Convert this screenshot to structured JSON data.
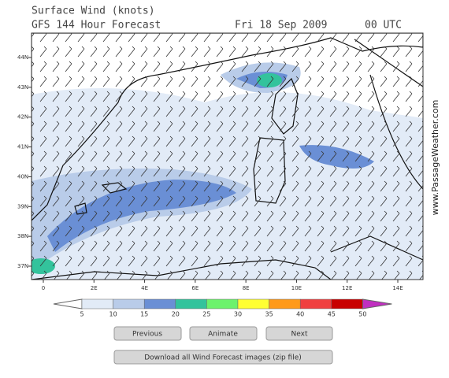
{
  "header": {
    "title": "Surface Wind (knots)",
    "forecast": "GFS 144 Hour Forecast",
    "date": "Fri 18 Sep 2009",
    "time": "00 UTC"
  },
  "map": {
    "lat_labels": [
      "44N",
      "43N",
      "42N",
      "41N",
      "40N",
      "39N",
      "38N",
      "37N"
    ],
    "lon_labels": [
      "0",
      "2E",
      "4E",
      "6E",
      "8E",
      "10E",
      "12E",
      "14E"
    ],
    "credit": "www.PassageWeather.com"
  },
  "legend": {
    "labels": [
      "5",
      "10",
      "15",
      "20",
      "25",
      "30",
      "35",
      "40",
      "45",
      "50"
    ],
    "colors": [
      "#ffffff",
      "#e2ebf7",
      "#b9cce9",
      "#6a8fd5",
      "#33c39c",
      "#6cf26c",
      "#ffff33",
      "#ff9a1a",
      "#f04040",
      "#c80000",
      "#c030c0"
    ]
  },
  "buttons": {
    "previous": "Previous",
    "animate": "Animate",
    "next": "Next",
    "download": "Download all Wind Forecast images (zip file)"
  }
}
